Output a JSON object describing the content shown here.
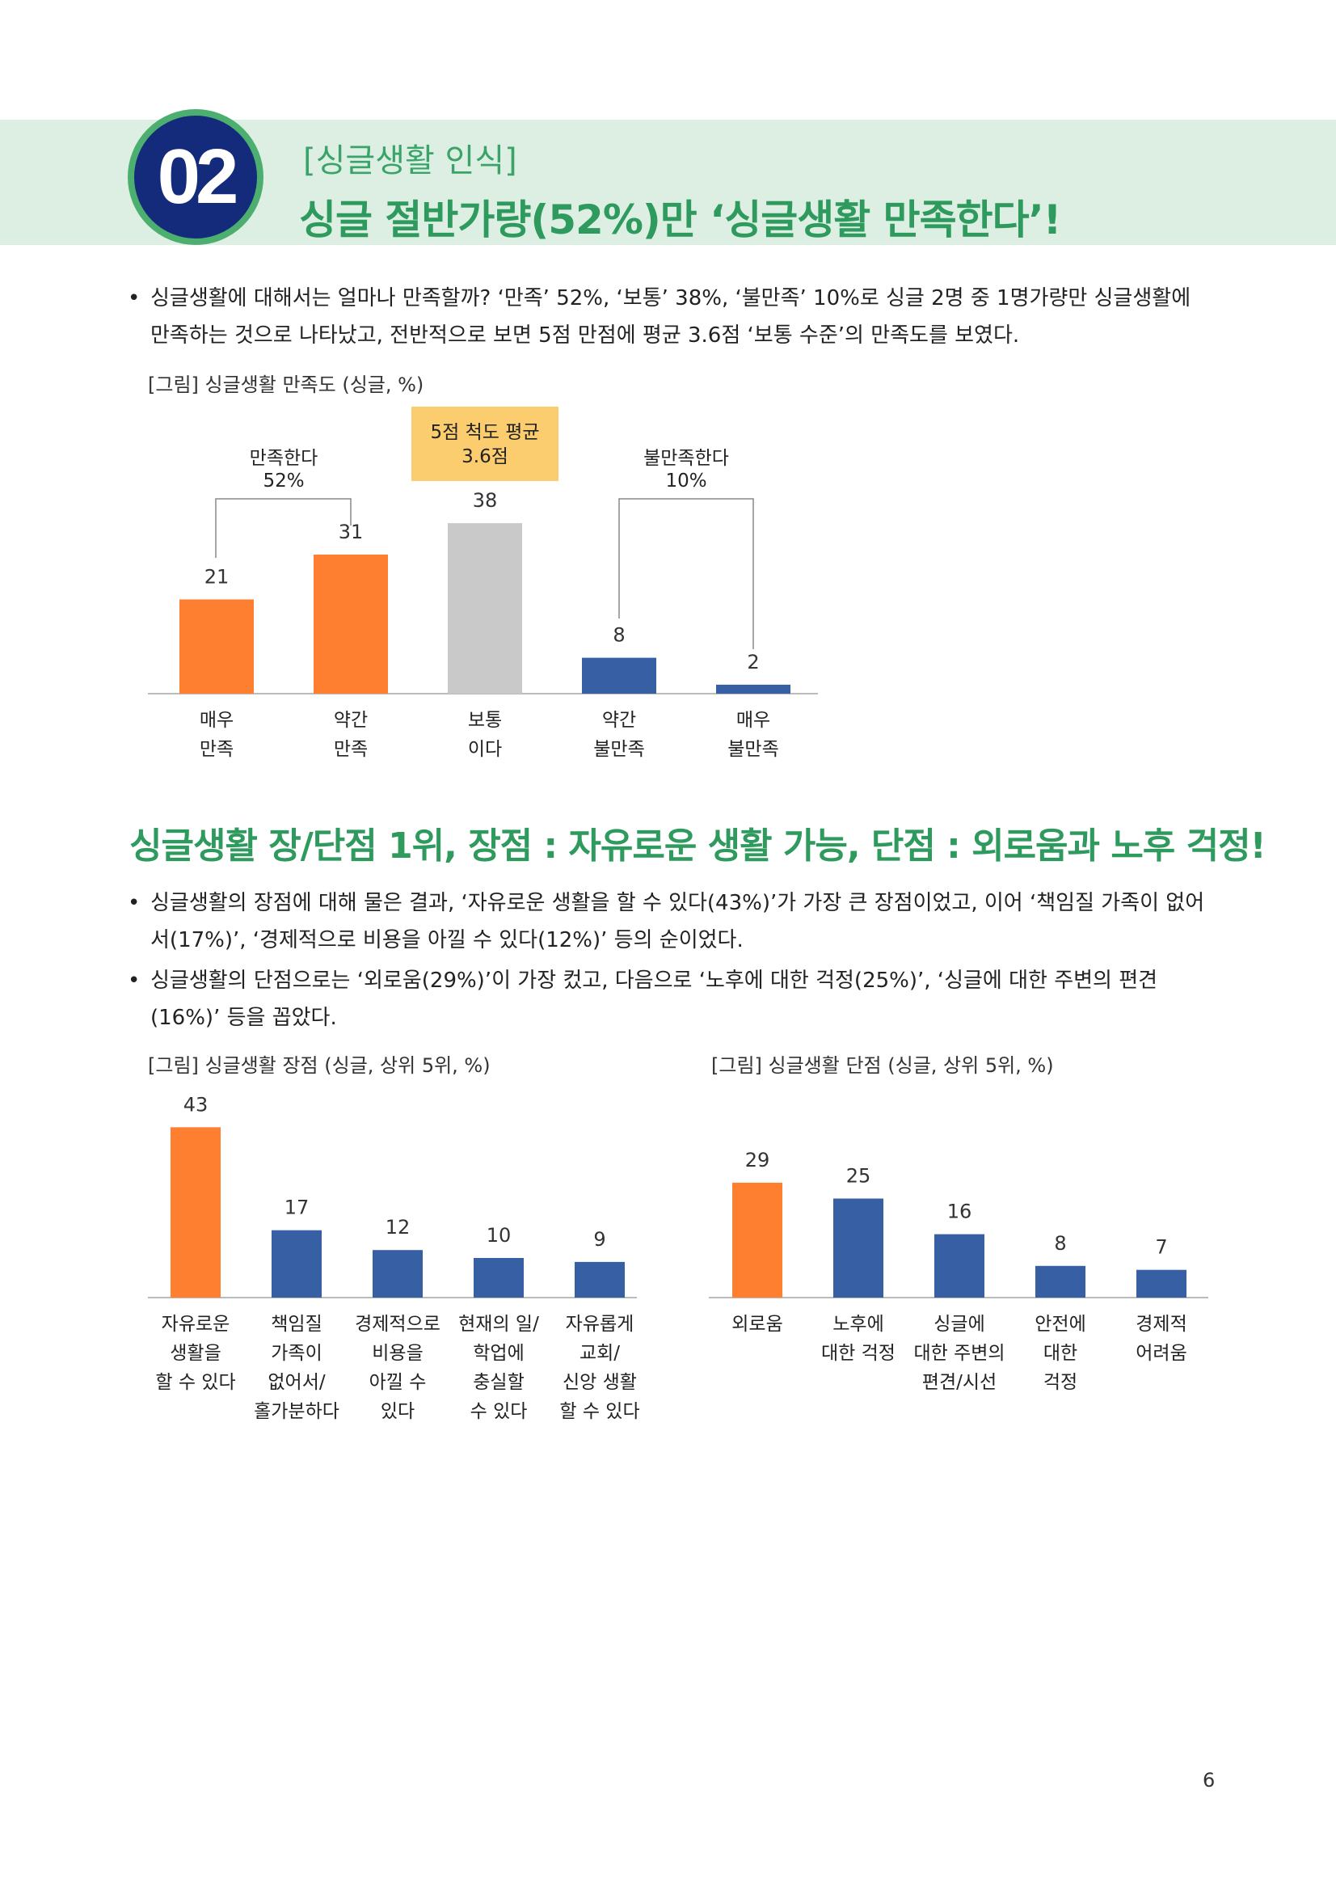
{
  "header": {
    "badge_number": "02",
    "kicker": "[싱글생활 인식]",
    "title": "싱글 절반가량(52%)만 ‘싱글생활 만족한다’!"
  },
  "intro_bullet": {
    "dot": "•",
    "text": "싱글생활에 대해서는 얼마나 만족할까? ‘만족’ 52%, ‘보통’ 38%, ‘불만족’ 10%로 싱글 2명 중 1명가량만 싱글생활에 만족하는 것으로 나타났고, 전반적으로 보면 5점 만점에 평균 3.6점 ‘보통 수준’의 만족도를 보였다."
  },
  "satisfaction_caption": "[그림] 싱글생활 만족도 (싱글, %)",
  "sub_heading": "싱글생활 장/단점 1위, 장점 : 자유로운 생활 가능, 단점 : 외로움과 노후 걱정!",
  "bullets": [
    {
      "dot": "•",
      "text": "싱글생활의 장점에 대해 물은 결과, ‘자유로운 생활을 할 수 있다(43%)’가 가장 큰 장점이었고, 이어 ‘책임질 가족이 없어서(17%)’, ‘경제적으로 비용을 아낄 수 있다(12%)’ 등의 순이었다."
    },
    {
      "dot": "•",
      "text": "싱글생활의 단점으로는 ‘외로움(29%)’이 가장 컸고, 다음으로 ‘노후에 대한 걱정(25%)’, ‘싱글에 대한 주변의 편견(16%)’ 등을 꼽았다."
    }
  ],
  "pros_caption": "[그림] 싱글생활 장점 (싱글, 상위 5위, %)",
  "cons_caption": "[그림] 싱글생활 단점 (싱글, 상위 5위, %)",
  "page_number": "6",
  "colors": {
    "orange": "#fd7f2f",
    "blue": "#3660a3",
    "gray": "#c9c9c9",
    "callout": "#fbcd6e",
    "green": "#2f9a5e"
  },
  "chart_data": [
    {
      "type": "bar",
      "categories": [
        [
          "매우",
          "만족"
        ],
        [
          "약간",
          "만족"
        ],
        [
          "보통",
          "이다"
        ],
        [
          "약간",
          "불만족"
        ],
        [
          "매우",
          "불만족"
        ]
      ],
      "values": [
        21,
        31,
        38,
        8,
        2
      ],
      "bar_colors": [
        "#fd7f2f",
        "#fd7f2f",
        "#c9c9c9",
        "#3660a3",
        "#3660a3"
      ],
      "annotations": {
        "satisfied": [
          "만족한다",
          "52%"
        ],
        "dissatisfied": [
          "불만족한다",
          "10%"
        ],
        "average_box": [
          "5점 척도 평균",
          "3.6점"
        ]
      }
    },
    {
      "type": "bar",
      "categories": [
        [
          "자유로운",
          "생활을",
          "할 수 있다"
        ],
        [
          "책임질",
          "가족이",
          "없어서/",
          "홀가분하다"
        ],
        [
          "경제적으로",
          "비용을",
          "아낄 수",
          "있다"
        ],
        [
          "현재의 일/",
          "학업에",
          "충실할",
          "수 있다"
        ],
        [
          "자유롭게",
          "교회/",
          "신앙 생활",
          "할 수 있다"
        ]
      ],
      "values": [
        43,
        17,
        12,
        10,
        9
      ],
      "bar_colors": [
        "#fd7f2f",
        "#3660a3",
        "#3660a3",
        "#3660a3",
        "#3660a3"
      ]
    },
    {
      "type": "bar",
      "categories": [
        [
          "외로움"
        ],
        [
          "노후에",
          "대한 걱정"
        ],
        [
          "싱글에",
          "대한 주변의",
          "편견/시선"
        ],
        [
          "안전에",
          "대한",
          "걱정"
        ],
        [
          "경제적",
          "어려움"
        ]
      ],
      "values": [
        29,
        25,
        16,
        8,
        7
      ],
      "bar_colors": [
        "#fd7f2f",
        "#3660a3",
        "#3660a3",
        "#3660a3",
        "#3660a3"
      ]
    }
  ]
}
